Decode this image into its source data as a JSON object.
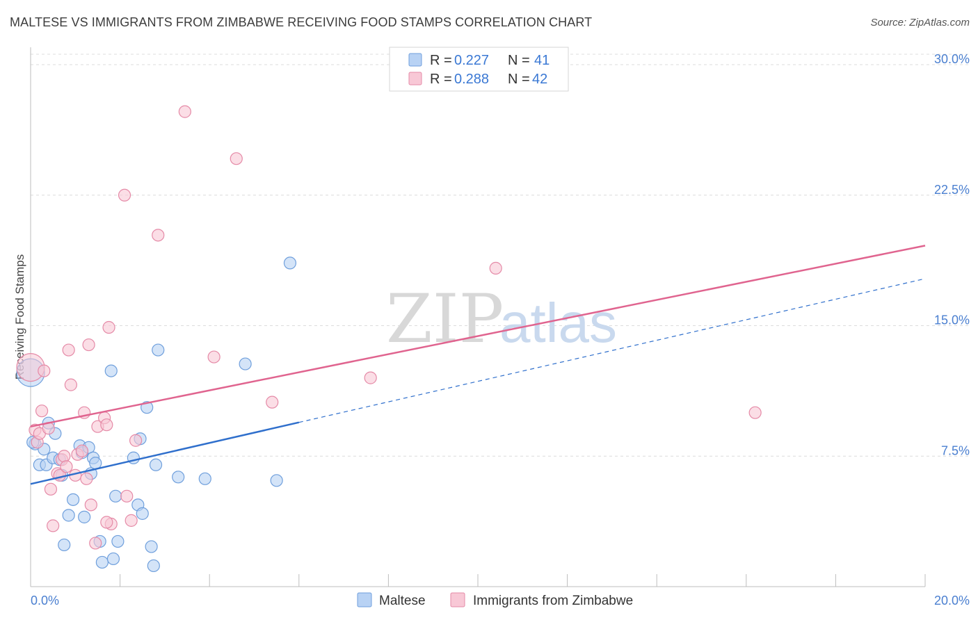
{
  "title": "MALTESE VS IMMIGRANTS FROM ZIMBABWE RECEIVING FOOD STAMPS CORRELATION CHART",
  "source": "Source: ZipAtlas.com",
  "watermark": {
    "zip": "ZIP",
    "atlas": "atlas"
  },
  "colors": {
    "maltese_fill": "#b8d2f4",
    "maltese_stroke": "#6f9fdc",
    "maltese_line": "#2f6fcc",
    "zimbabwe_fill": "#f8c8d6",
    "zimbabwe_stroke": "#e58aa7",
    "zimbabwe_line": "#e0648f",
    "grid": "#dcdcdc",
    "axis_label": "#4a7fd0"
  },
  "legend": {
    "rows": [
      {
        "r_label": "R =",
        "r_value": "0.227",
        "n_label": "N =",
        "n_value": "41"
      },
      {
        "r_label": "R =",
        "r_value": "0.288",
        "n_label": "N =",
        "n_value": "42"
      }
    ]
  },
  "chart_data": {
    "type": "scatter",
    "title": "MALTESE VS IMMIGRANTS FROM ZIMBABWE RECEIVING FOOD STAMPS CORRELATION CHART",
    "xlabel": "",
    "ylabel": "Receiving Food Stamps",
    "xlim": [
      0,
      20
    ],
    "ylim": [
      0,
      31
    ],
    "x_tick_labels": [
      "0.0%",
      "20.0%"
    ],
    "y_ticks": [
      7.5,
      15.0,
      22.5,
      30.0
    ],
    "y_tick_labels": [
      "7.5%",
      "15.0%",
      "22.5%",
      "30.0%"
    ],
    "legend_position": "bottom",
    "series": [
      {
        "name": "Maltese",
        "r": 0.227,
        "n": 41,
        "trend": {
          "x0": 0,
          "y0": 5.9,
          "x1": 20,
          "y1": 17.7,
          "solid_until_x": 6.0
        },
        "points": [
          [
            0.0,
            12.3
          ],
          [
            0.1,
            8.2
          ],
          [
            0.2,
            7.0
          ],
          [
            0.3,
            7.9
          ],
          [
            0.35,
            7.0
          ],
          [
            0.4,
            9.4
          ],
          [
            0.5,
            7.4
          ],
          [
            0.55,
            8.8
          ],
          [
            0.65,
            7.3
          ],
          [
            0.7,
            6.4
          ],
          [
            0.75,
            2.4
          ],
          [
            0.85,
            4.1
          ],
          [
            0.95,
            5.0
          ],
          [
            1.1,
            8.1
          ],
          [
            1.15,
            7.7
          ],
          [
            1.2,
            4.0
          ],
          [
            1.3,
            8.0
          ],
          [
            1.35,
            6.5
          ],
          [
            1.4,
            7.4
          ],
          [
            1.45,
            7.1
          ],
          [
            1.55,
            2.6
          ],
          [
            1.6,
            1.4
          ],
          [
            1.85,
            1.6
          ],
          [
            1.9,
            5.2
          ],
          [
            1.95,
            2.6
          ],
          [
            2.3,
            7.4
          ],
          [
            2.4,
            4.7
          ],
          [
            2.45,
            8.5
          ],
          [
            2.5,
            4.2
          ],
          [
            2.6,
            10.3
          ],
          [
            2.7,
            2.3
          ],
          [
            2.75,
            1.2
          ],
          [
            2.8,
            7.0
          ],
          [
            2.85,
            13.6
          ],
          [
            3.3,
            6.3
          ],
          [
            3.9,
            6.2
          ],
          [
            4.8,
            12.8
          ],
          [
            5.5,
            6.1
          ],
          [
            5.8,
            18.6
          ],
          [
            1.8,
            12.4
          ],
          [
            0.05,
            8.3
          ]
        ]
      },
      {
        "name": "Immigrants from Zimbabwe",
        "r": 0.288,
        "n": 42,
        "trend": {
          "x0": 0,
          "y0": 9.2,
          "x1": 20,
          "y1": 19.6
        },
        "points": [
          [
            0.0,
            12.6
          ],
          [
            0.1,
            9.0
          ],
          [
            0.15,
            8.3
          ],
          [
            0.2,
            8.8
          ],
          [
            0.25,
            10.1
          ],
          [
            0.3,
            12.4
          ],
          [
            0.4,
            9.1
          ],
          [
            0.45,
            5.6
          ],
          [
            0.5,
            3.5
          ],
          [
            0.6,
            6.5
          ],
          [
            0.65,
            6.4
          ],
          [
            0.7,
            7.3
          ],
          [
            0.75,
            7.5
          ],
          [
            0.8,
            6.9
          ],
          [
            0.85,
            13.6
          ],
          [
            0.9,
            11.6
          ],
          [
            1.0,
            6.4
          ],
          [
            1.05,
            7.6
          ],
          [
            1.15,
            7.8
          ],
          [
            1.2,
            10.0
          ],
          [
            1.25,
            6.2
          ],
          [
            1.3,
            13.9
          ],
          [
            1.35,
            4.7
          ],
          [
            1.45,
            2.5
          ],
          [
            1.5,
            9.2
          ],
          [
            1.65,
            9.7
          ],
          [
            1.7,
            9.3
          ],
          [
            1.75,
            14.9
          ],
          [
            1.8,
            3.6
          ],
          [
            2.1,
            22.5
          ],
          [
            2.15,
            5.2
          ],
          [
            2.25,
            3.8
          ],
          [
            2.35,
            8.4
          ],
          [
            2.85,
            20.2
          ],
          [
            3.45,
            27.3
          ],
          [
            4.1,
            13.2
          ],
          [
            4.6,
            24.6
          ],
          [
            5.4,
            10.6
          ],
          [
            7.6,
            12.0
          ],
          [
            10.4,
            18.3
          ],
          [
            16.2,
            10.0
          ],
          [
            1.7,
            3.7
          ]
        ]
      }
    ]
  }
}
